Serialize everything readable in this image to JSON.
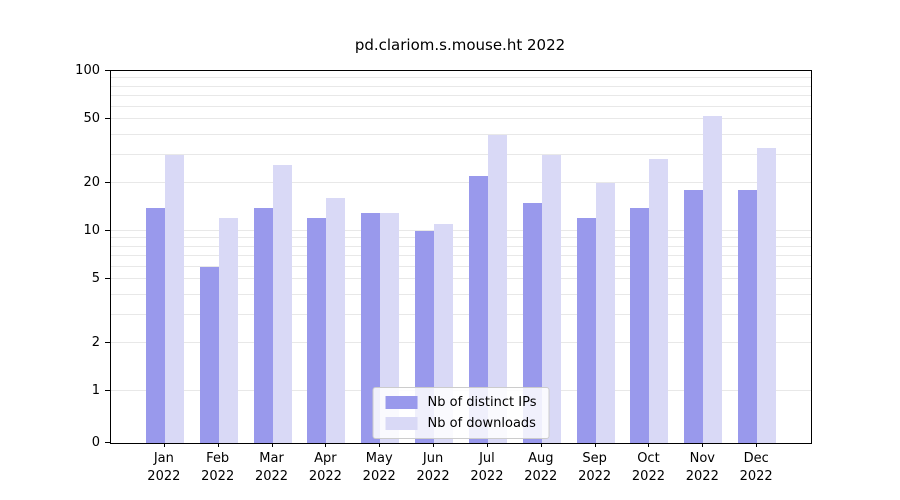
{
  "page": {
    "background": "#ffffff"
  },
  "chart_data": {
    "type": "bar",
    "title": "pd.clariom.s.mouse.ht 2022",
    "categories": [
      "Jan",
      "Feb",
      "Mar",
      "Apr",
      "May",
      "Jun",
      "Jul",
      "Aug",
      "Sep",
      "Oct",
      "Nov",
      "Dec"
    ],
    "year_label": "2022",
    "series": [
      {
        "name": "Nb of distinct IPs",
        "color": "#9999ec",
        "values": [
          14,
          6,
          14,
          12,
          13,
          10,
          22,
          15,
          12,
          14,
          18,
          18
        ]
      },
      {
        "name": "Nb of downloads",
        "color": "#d9d9f6",
        "values": [
          30,
          12,
          26,
          16,
          13,
          11,
          40,
          30,
          20,
          28,
          52,
          33
        ]
      }
    ],
    "yticks": [
      0,
      1,
      2,
      5,
      10,
      20,
      50,
      100
    ],
    "yscale": "symlog",
    "ylim": [
      0,
      100
    ],
    "grid": true,
    "grid_color": "#e8e8e8",
    "axis_color": "#000000",
    "legend_position": "lower center"
  }
}
